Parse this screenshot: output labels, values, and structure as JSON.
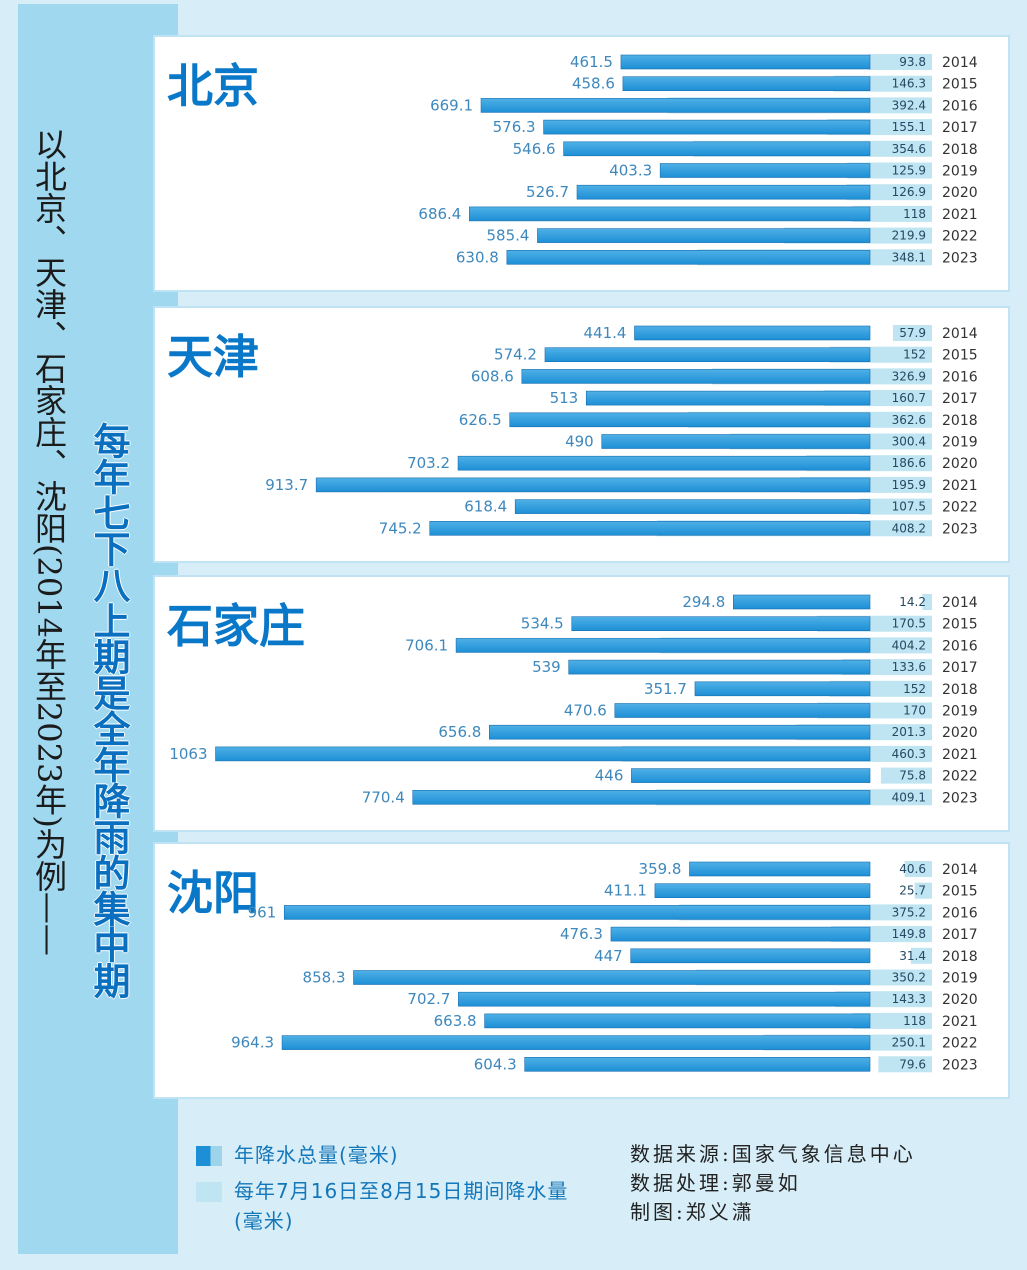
{
  "title": "每年七下八上期是全年降雨的集中期",
  "subtitle": "以北京、天津、石家庄、沈阳(2014年至2023年)为例——",
  "legend": {
    "total": "年降水总量(毫米)",
    "period": "每年7月16日至8月15日期间降水量(毫米)"
  },
  "credits": {
    "source": "数据来源:国家气象信息中心",
    "processing": "数据处理:郭曼如",
    "chart": "制图:郑义潇"
  },
  "colors": {
    "total_bar": "#1d8fd6",
    "period_bar": "#bfe4f2",
    "title": "#0a78c8",
    "background": "#d7eef8"
  },
  "chart_data": [
    {
      "type": "bar",
      "title": "北京",
      "categories": [
        "2014",
        "2015",
        "2016",
        "2017",
        "2018",
        "2019",
        "2020",
        "2021",
        "2022",
        "2023"
      ],
      "series": [
        {
          "name": "年降水总量(毫米)",
          "values": [
            461.5,
            458.6,
            669.1,
            576.3,
            546.6,
            403.3,
            526.7,
            686.4,
            585.4,
            630.8
          ]
        },
        {
          "name": "每年7月16日至8月15日期间降水量(毫米)",
          "values": [
            93.8,
            146.3,
            392.4,
            155.1,
            354.6,
            125.9,
            126.9,
            118,
            219.9,
            348.1
          ]
        }
      ]
    },
    {
      "type": "bar",
      "title": "天津",
      "categories": [
        "2014",
        "2015",
        "2016",
        "2017",
        "2018",
        "2019",
        "2020",
        "2021",
        "2022",
        "2023"
      ],
      "series": [
        {
          "name": "年降水总量(毫米)",
          "values": [
            441.4,
            574.2,
            608.6,
            513,
            626.5,
            490,
            703.2,
            913.7,
            618.4,
            745.2
          ]
        },
        {
          "name": "每年7月16日至8月15日期间降水量(毫米)",
          "values": [
            57.9,
            152,
            326.9,
            160.7,
            362.6,
            300.4,
            186.6,
            195.9,
            107.5,
            408.2
          ]
        }
      ]
    },
    {
      "type": "bar",
      "title": "石家庄",
      "categories": [
        "2014",
        "2015",
        "2016",
        "2017",
        "2018",
        "2019",
        "2020",
        "2021",
        "2022",
        "2023"
      ],
      "series": [
        {
          "name": "年降水总量(毫米)",
          "values": [
            294.8,
            534.5,
            706.1,
            539,
            351.7,
            470.6,
            656.8,
            1063,
            446,
            770.4
          ]
        },
        {
          "name": "每年7月16日至8月15日期间降水量(毫米)",
          "values": [
            14.2,
            170.5,
            404.2,
            133.6,
            152,
            170,
            201.3,
            460.3,
            75.8,
            409.1
          ]
        }
      ]
    },
    {
      "type": "bar",
      "title": "沈阳",
      "categories": [
        "2014",
        "2015",
        "2016",
        "2017",
        "2018",
        "2019",
        "2020",
        "2021",
        "2022",
        "2023"
      ],
      "series": [
        {
          "name": "年降水总量(毫米)",
          "values": [
            359.8,
            411.1,
            961,
            476.3,
            447,
            858.3,
            702.7,
            663.8,
            964.3,
            604.3
          ]
        },
        {
          "name": "每年7月16日至8月15日期间降水量(毫米)",
          "values": [
            40.6,
            25.7,
            375.2,
            149.8,
            31.4,
            350.2,
            143.3,
            118,
            250.1,
            79.6
          ]
        }
      ]
    }
  ]
}
